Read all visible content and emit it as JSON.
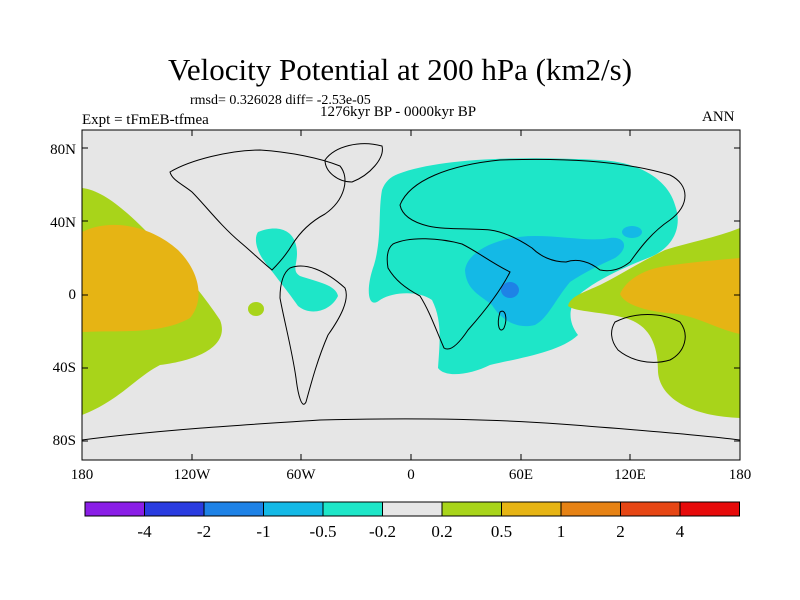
{
  "title": "Velocity Potential at 200 hPa (km2/s)",
  "stats_line": "rmsd= 0.326028 diff= -2.53e-05",
  "experiment": "Expt = tFmEB-tfmea",
  "period": "1276kyr BP - 0000kyr BP",
  "season": "ANN",
  "y_ticks": [
    "80N",
    "40N",
    "0",
    "40S",
    "80S"
  ],
  "x_ticks": [
    "180",
    "120W",
    "60W",
    "0",
    "60E",
    "120E",
    "180"
  ],
  "colorbar": {
    "labels": [
      "-4",
      "-2",
      "-1",
      "-0.5",
      "-0.2",
      "0.2",
      "0.5",
      "1",
      "2",
      "4"
    ],
    "colors": [
      "#8a1ee6",
      "#2a3ce0",
      "#1e82e6",
      "#14b9e6",
      "#1ee6c8",
      "#e6e6e6",
      "#a8d41a",
      "#e6b414",
      "#e68214",
      "#e64614",
      "#e60a0a"
    ]
  },
  "colors": {
    "land_outline": "#000000",
    "neutral": "#e6e6e6",
    "weak_negative": "#1ee6c8",
    "moderate_negative": "#14b9e6",
    "strong_negative": "#1e82e6",
    "weak_positive": "#a8d41a",
    "moderate_positive": "#e6b414"
  }
}
